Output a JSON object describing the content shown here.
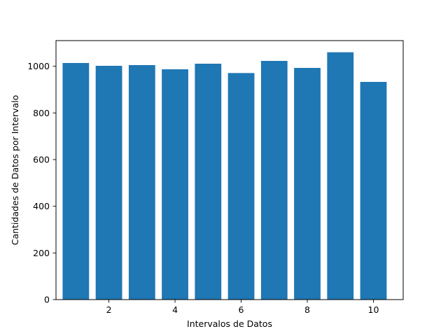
{
  "chart_data": {
    "type": "bar",
    "title": "",
    "xlabel": "Intervalos de Datos",
    "ylabel": "Cantidades de Datos por Intervalo",
    "x": [
      1,
      2,
      3,
      4,
      5,
      6,
      7,
      8,
      9,
      10
    ],
    "values": [
      1014,
      1002,
      1005,
      987,
      1011,
      971,
      1023,
      993,
      1060,
      933
    ],
    "xlim": [
      0.4,
      10.9
    ],
    "ylim": [
      0,
      1110
    ],
    "xticks": [
      2,
      4,
      6,
      8,
      10
    ],
    "yticks": [
      0,
      200,
      400,
      600,
      800,
      1000
    ],
    "bar_color": "#1f77b4",
    "grid": false,
    "legend": "none"
  }
}
